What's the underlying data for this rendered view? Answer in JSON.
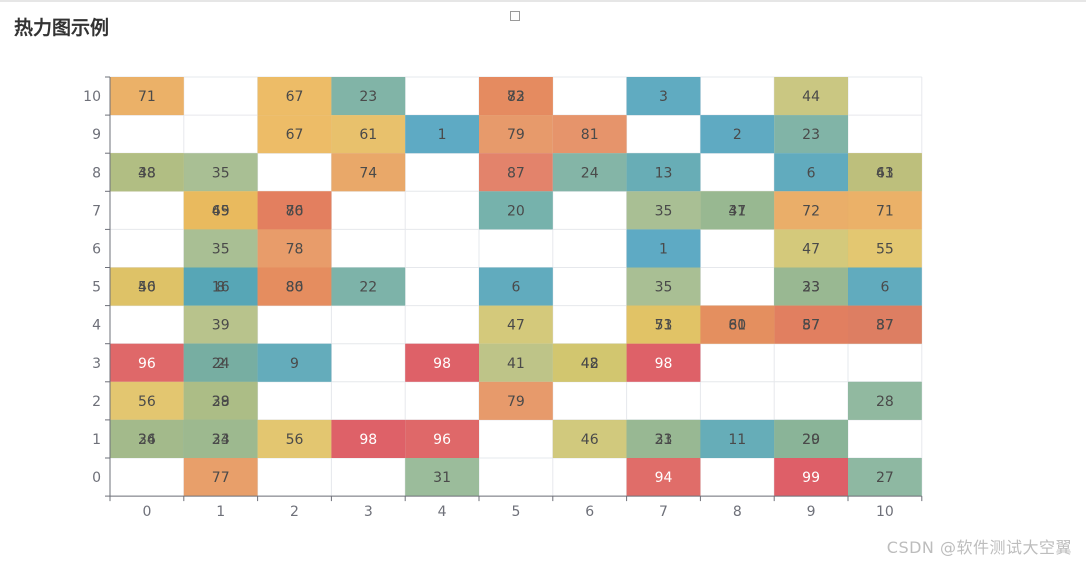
{
  "page": {
    "title": "热力图示例",
    "watermark": "CSDN @软件测试大空翼"
  },
  "chart_data": {
    "type": "heatmap",
    "title": "热力图示例",
    "x_categories": [
      "0",
      "1",
      "2",
      "3",
      "4",
      "5",
      "6",
      "7",
      "8",
      "9",
      "10"
    ],
    "y_categories": [
      "0",
      "1",
      "2",
      "3",
      "4",
      "5",
      "6",
      "7",
      "8",
      "9",
      "10"
    ],
    "color_range": [
      0,
      100
    ],
    "palette": [
      "#4fa3c0",
      "#5ea7ab",
      "#9cb98f",
      "#dcc769",
      "#ebb75a",
      "#e3845f",
      "#da4e5b"
    ],
    "grid": true,
    "cells": [
      {
        "x": 0,
        "y": 10,
        "value": 71
      },
      {
        "x": 2,
        "y": 10,
        "value": 67
      },
      {
        "x": 3,
        "y": 10,
        "value": 23
      },
      {
        "x": 5,
        "y": 10,
        "value": 73
      },
      {
        "x": 5,
        "y": 10,
        "value": 82
      },
      {
        "x": 7,
        "y": 10,
        "value": 3
      },
      {
        "x": 9,
        "y": 10,
        "value": 44
      },
      {
        "x": 2,
        "y": 9,
        "value": 67
      },
      {
        "x": 3,
        "y": 9,
        "value": 61
      },
      {
        "x": 4,
        "y": 9,
        "value": 1
      },
      {
        "x": 5,
        "y": 9,
        "value": 79
      },
      {
        "x": 6,
        "y": 9,
        "value": 81
      },
      {
        "x": 8,
        "y": 9,
        "value": 2
      },
      {
        "x": 9,
        "y": 9,
        "value": 23
      },
      {
        "x": 0,
        "y": 8,
        "value": 48
      },
      {
        "x": 0,
        "y": 8,
        "value": 38
      },
      {
        "x": 1,
        "y": 8,
        "value": 35
      },
      {
        "x": 3,
        "y": 8,
        "value": 74
      },
      {
        "x": 5,
        "y": 8,
        "value": 87
      },
      {
        "x": 6,
        "y": 8,
        "value": 24
      },
      {
        "x": 7,
        "y": 8,
        "value": 13
      },
      {
        "x": 9,
        "y": 8,
        "value": 6
      },
      {
        "x": 10,
        "y": 8,
        "value": 63
      },
      {
        "x": 10,
        "y": 8,
        "value": 41
      },
      {
        "x": 1,
        "y": 7,
        "value": 49
      },
      {
        "x": 1,
        "y": 7,
        "value": 65
      },
      {
        "x": 2,
        "y": 7,
        "value": 70
      },
      {
        "x": 2,
        "y": 7,
        "value": 86
      },
      {
        "x": 5,
        "y": 7,
        "value": 20
      },
      {
        "x": 7,
        "y": 7,
        "value": 35
      },
      {
        "x": 8,
        "y": 7,
        "value": 47
      },
      {
        "x": 8,
        "y": 7,
        "value": 31
      },
      {
        "x": 9,
        "y": 7,
        "value": 72
      },
      {
        "x": 10,
        "y": 7,
        "value": 71
      },
      {
        "x": 1,
        "y": 6,
        "value": 35
      },
      {
        "x": 2,
        "y": 6,
        "value": 78
      },
      {
        "x": 7,
        "y": 6,
        "value": 1
      },
      {
        "x": 9,
        "y": 6,
        "value": 47
      },
      {
        "x": 10,
        "y": 6,
        "value": 55
      },
      {
        "x": 0,
        "y": 5,
        "value": 40
      },
      {
        "x": 0,
        "y": 5,
        "value": 56
      },
      {
        "x": 1,
        "y": 5,
        "value": 16
      },
      {
        "x": 1,
        "y": 5,
        "value": 8
      },
      {
        "x": 2,
        "y": 5,
        "value": 86
      },
      {
        "x": 2,
        "y": 5,
        "value": 80
      },
      {
        "x": 3,
        "y": 5,
        "value": 22
      },
      {
        "x": 5,
        "y": 5,
        "value": 6
      },
      {
        "x": 7,
        "y": 5,
        "value": 35
      },
      {
        "x": 9,
        "y": 5,
        "value": 23
      },
      {
        "x": 9,
        "y": 5,
        "value": 33
      },
      {
        "x": 10,
        "y": 5,
        "value": 6
      },
      {
        "x": 1,
        "y": 4,
        "value": 39
      },
      {
        "x": 5,
        "y": 4,
        "value": 47
      },
      {
        "x": 7,
        "y": 4,
        "value": 71
      },
      {
        "x": 7,
        "y": 4,
        "value": 53
      },
      {
        "x": 8,
        "y": 4,
        "value": 60
      },
      {
        "x": 8,
        "y": 4,
        "value": 81
      },
      {
        "x": 9,
        "y": 4,
        "value": 57
      },
      {
        "x": 9,
        "y": 4,
        "value": 87
      },
      {
        "x": 10,
        "y": 4,
        "value": 37
      },
      {
        "x": 10,
        "y": 4,
        "value": 87
      },
      {
        "x": 0,
        "y": 3,
        "value": 96
      },
      {
        "x": 1,
        "y": 3,
        "value": 2
      },
      {
        "x": 1,
        "y": 3,
        "value": 24
      },
      {
        "x": 2,
        "y": 3,
        "value": 9
      },
      {
        "x": 4,
        "y": 3,
        "value": 98
      },
      {
        "x": 5,
        "y": 3,
        "value": 41
      },
      {
        "x": 6,
        "y": 3,
        "value": 42
      },
      {
        "x": 6,
        "y": 3,
        "value": 48
      },
      {
        "x": 7,
        "y": 3,
        "value": 98
      },
      {
        "x": 0,
        "y": 2,
        "value": 56
      },
      {
        "x": 1,
        "y": 2,
        "value": 29
      },
      {
        "x": 1,
        "y": 2,
        "value": 38
      },
      {
        "x": 5,
        "y": 2,
        "value": 79
      },
      {
        "x": 10,
        "y": 2,
        "value": 28
      },
      {
        "x": 0,
        "y": 1,
        "value": 24
      },
      {
        "x": 0,
        "y": 1,
        "value": 36
      },
      {
        "x": 1,
        "y": 1,
        "value": 23
      },
      {
        "x": 1,
        "y": 1,
        "value": 34
      },
      {
        "x": 2,
        "y": 1,
        "value": 56
      },
      {
        "x": 3,
        "y": 1,
        "value": 98
      },
      {
        "x": 4,
        "y": 1,
        "value": 96
      },
      {
        "x": 6,
        "y": 1,
        "value": 46
      },
      {
        "x": 7,
        "y": 1,
        "value": 21
      },
      {
        "x": 7,
        "y": 1,
        "value": 33
      },
      {
        "x": 8,
        "y": 1,
        "value": 11
      },
      {
        "x": 9,
        "y": 1,
        "value": 20
      },
      {
        "x": 9,
        "y": 1,
        "value": 29
      },
      {
        "x": 1,
        "y": 0,
        "value": 77
      },
      {
        "x": 4,
        "y": 0,
        "value": 31
      },
      {
        "x": 7,
        "y": 0,
        "value": 94
      },
      {
        "x": 9,
        "y": 0,
        "value": 99
      },
      {
        "x": 10,
        "y": 0,
        "value": 27
      }
    ]
  }
}
